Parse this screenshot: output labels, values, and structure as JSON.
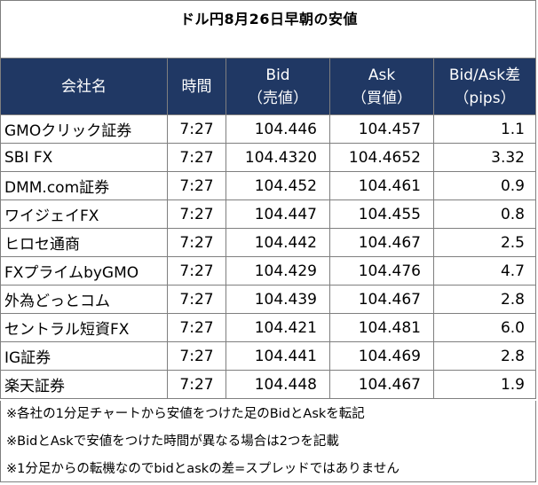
{
  "title": "ドル円8月26日早朝の安値",
  "headers": {
    "company": "会社名",
    "time": "時間",
    "bid_1": "Bid",
    "bid_2": "（売値）",
    "ask_1": "Ask",
    "ask_2": "（買値）",
    "spread_1": "Bid/Ask差",
    "spread_2": "（pips）"
  },
  "rows": [
    {
      "company": "GMOクリック証券",
      "time": "7:27",
      "bid": "104.446",
      "ask": "104.457",
      "spread": "1.1"
    },
    {
      "company": "SBI FX",
      "time": "7:27",
      "bid": "104.4320",
      "ask": "104.4652",
      "spread": "3.32"
    },
    {
      "company": "DMM.com証券",
      "time": "7:27",
      "bid": "104.452",
      "ask": "104.461",
      "spread": "0.9"
    },
    {
      "company": "ワイジェイFX",
      "time": "7:27",
      "bid": "104.447",
      "ask": "104.455",
      "spread": "0.8"
    },
    {
      "company": "ヒロセ通商",
      "time": "7:27",
      "bid": "104.442",
      "ask": "104.467",
      "spread": "2.5"
    },
    {
      "company": "FXプライムbyGMO",
      "time": "7:27",
      "bid": "104.429",
      "ask": "104.476",
      "spread": "4.7"
    },
    {
      "company": "外為どっとコム",
      "time": "7:27",
      "bid": "104.439",
      "ask": "104.467",
      "spread": "2.8"
    },
    {
      "company": "セントラル短資FX",
      "time": "7:27",
      "bid": "104.421",
      "ask": "104.481",
      "spread": "6.0"
    },
    {
      "company": "IG証券",
      "time": "7:27",
      "bid": "104.441",
      "ask": "104.469",
      "spread": "2.8"
    },
    {
      "company": "楽天証券",
      "time": "7:27",
      "bid": "104.448",
      "ask": "104.467",
      "spread": "1.9"
    }
  ],
  "notes": [
    "※各社の1分足チャートから安値をつけた足のBidとAskを転記",
    "※BidとAskで安値をつけた時間が異なる場合は2つを記載",
    "※1分足からの転機なのでbidとaskの差=スプレッドではありません"
  ],
  "colors": {
    "header_bg": "#203864",
    "header_text": "#ffffff",
    "border": "#7f7f7f"
  }
}
